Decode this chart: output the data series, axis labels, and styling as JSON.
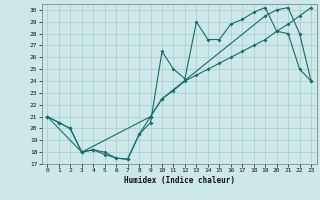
{
  "xlabel": "Humidex (Indice chaleur)",
  "ylabel": "",
  "background_color": "#cce8e8",
  "grid_color": "#aacccc",
  "line_color": "#1a6b6b",
  "xlim": [
    -0.5,
    23.5
  ],
  "ylim": [
    17,
    30.5
  ],
  "xticks": [
    0,
    1,
    2,
    3,
    4,
    5,
    6,
    7,
    8,
    9,
    10,
    11,
    12,
    13,
    14,
    15,
    16,
    17,
    18,
    19,
    20,
    21,
    22,
    23
  ],
  "yticks": [
    17,
    18,
    19,
    20,
    21,
    22,
    23,
    24,
    25,
    26,
    27,
    28,
    29,
    30
  ],
  "line1_x": [
    0,
    1,
    2,
    3,
    4,
    5,
    6,
    7,
    8,
    9,
    10,
    11,
    12,
    13,
    14,
    15,
    16,
    17,
    18,
    19,
    20,
    21,
    22,
    23
  ],
  "line1_y": [
    21.0,
    20.5,
    20.0,
    18.0,
    18.2,
    17.8,
    17.5,
    17.4,
    19.5,
    20.5,
    26.5,
    25.0,
    24.2,
    29.0,
    27.5,
    27.5,
    28.8,
    29.2,
    29.8,
    30.2,
    28.2,
    28.0,
    25.0,
    24.0
  ],
  "line2_x": [
    0,
    3,
    9,
    10,
    11,
    12,
    13,
    14,
    15,
    16,
    17,
    18,
    19,
    20,
    21,
    22,
    23
  ],
  "line2_y": [
    21.0,
    18.0,
    21.0,
    22.5,
    23.2,
    24.0,
    24.5,
    25.0,
    25.5,
    26.0,
    26.5,
    27.0,
    27.5,
    28.2,
    28.8,
    29.5,
    30.2
  ],
  "line3_x": [
    0,
    1,
    2,
    3,
    4,
    5,
    6,
    7,
    8,
    9,
    10,
    19,
    20,
    21,
    22,
    23
  ],
  "line3_y": [
    21.0,
    20.5,
    20.0,
    18.0,
    18.2,
    18.0,
    17.5,
    17.4,
    19.5,
    21.0,
    22.5,
    29.5,
    30.0,
    30.2,
    28.0,
    24.0
  ]
}
